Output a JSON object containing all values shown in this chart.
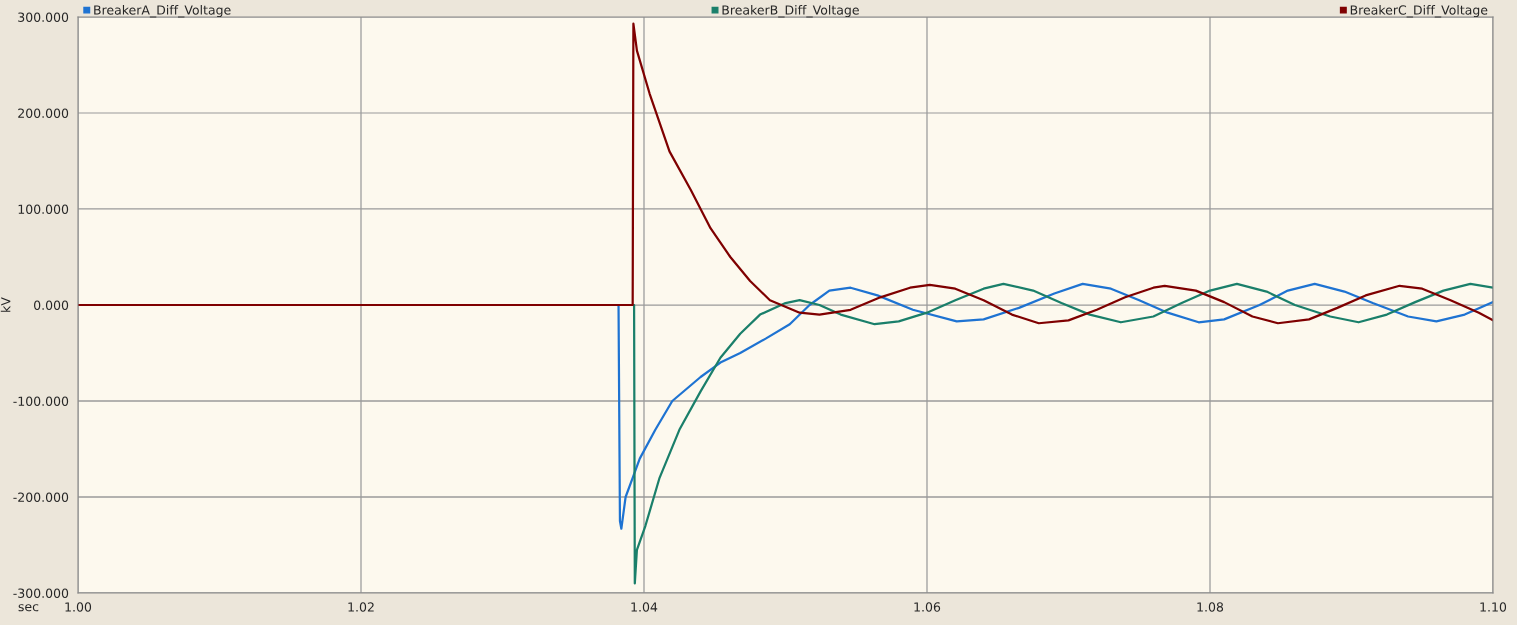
{
  "chart_data": {
    "type": "line",
    "xlabel": "sec",
    "ylabel": "kV",
    "xlim": [
      1.0,
      1.1
    ],
    "xticks": [
      {
        "value": 1.0,
        "label": "1.00"
      },
      {
        "value": 1.02,
        "label": "1.02"
      },
      {
        "value": 1.04,
        "label": "1.04"
      },
      {
        "value": 1.06,
        "label": "1.06"
      },
      {
        "value": 1.08,
        "label": "1.08"
      },
      {
        "value": 1.1,
        "label": "1.10"
      }
    ],
    "ylim": [
      -300,
      300
    ],
    "yticks": [
      {
        "value": -300,
        "label": "-300.000"
      },
      {
        "value": -200,
        "label": "-200.000"
      },
      {
        "value": -100,
        "label": "-100.000"
      },
      {
        "value": 0,
        "label": "0.000"
      },
      {
        "value": 100,
        "label": "100.000"
      },
      {
        "value": 200,
        "label": "200.000"
      },
      {
        "value": 300,
        "label": "300.000"
      }
    ],
    "grid": true,
    "legend": "top",
    "marker": "none",
    "line_style": "solid",
    "series": [
      {
        "name": "BreakerA_Diff_Voltage",
        "color": "#1e73d2",
        "x": [
          1.0,
          1.0382,
          1.0383,
          1.0384,
          1.0387,
          1.0392,
          1.0397,
          1.0408,
          1.042,
          1.044,
          1.0454,
          1.0468,
          1.0486,
          1.0503,
          1.0517,
          1.0531,
          1.0546,
          1.0565,
          1.059,
          1.0621,
          1.064,
          1.0665,
          1.069,
          1.071,
          1.073,
          1.075,
          1.077,
          1.0792,
          1.081,
          1.0835,
          1.0855,
          1.0874,
          1.0895,
          1.0915,
          1.094,
          1.096,
          1.098,
          1.1
        ],
        "values": [
          0,
          0,
          -225,
          -233,
          -200,
          -180,
          -160,
          -130,
          -100,
          -75,
          -60,
          -50,
          -35,
          -20,
          0,
          15,
          18,
          10,
          -5,
          -17,
          -15,
          -3,
          12,
          22,
          17,
          5,
          -8,
          -18,
          -15,
          0,
          15,
          22,
          14,
          2,
          -12,
          -17,
          -10,
          3
        ]
      },
      {
        "name": "BreakerB_Diff_Voltage",
        "color": "#1a7f6a",
        "x": [
          1.0,
          1.0393,
          1.03935,
          1.0395,
          1.0401,
          1.0411,
          1.0425,
          1.044,
          1.0454,
          1.0468,
          1.0482,
          1.05,
          1.051,
          1.0524,
          1.0539,
          1.0563,
          1.058,
          1.06,
          1.062,
          1.064,
          1.0654,
          1.0675,
          1.0695,
          1.0715,
          1.0737,
          1.076,
          1.078,
          1.08,
          1.0819,
          1.084,
          1.086,
          1.0885,
          1.0905,
          1.0925,
          1.0945,
          1.0965,
          1.0984,
          1.1
        ],
        "values": [
          0,
          0,
          -290,
          -255,
          -230,
          -180,
          -130,
          -90,
          -55,
          -30,
          -10,
          2,
          5,
          0,
          -10,
          -20,
          -17,
          -8,
          5,
          17,
          22,
          15,
          2,
          -10,
          -18,
          -12,
          2,
          15,
          22,
          14,
          0,
          -12,
          -18,
          -10,
          3,
          15,
          22,
          18
        ]
      },
      {
        "name": "BreakerC_Diff_Voltage",
        "color": "#7f0000",
        "x": [
          1.0,
          1.0392,
          1.03925,
          1.0395,
          1.0404,
          1.0418,
          1.0433,
          1.0447,
          1.0461,
          1.0475,
          1.0489,
          1.051,
          1.0524,
          1.0546,
          1.0567,
          1.0588,
          1.0602,
          1.062,
          1.064,
          1.066,
          1.0679,
          1.07,
          1.072,
          1.074,
          1.076,
          1.0768,
          1.079,
          1.081,
          1.083,
          1.0848,
          1.087,
          1.089,
          1.091,
          1.0934,
          1.095,
          1.097,
          1.099,
          1.1
        ],
        "values": [
          0,
          0,
          293,
          265,
          220,
          160,
          120,
          80,
          50,
          25,
          5,
          -8,
          -10,
          -5,
          8,
          18,
          21,
          17,
          5,
          -10,
          -19,
          -16,
          -5,
          8,
          18,
          20,
          15,
          3,
          -12,
          -19,
          -15,
          -3,
          10,
          20,
          17,
          5,
          -8,
          -16
        ]
      }
    ]
  }
}
